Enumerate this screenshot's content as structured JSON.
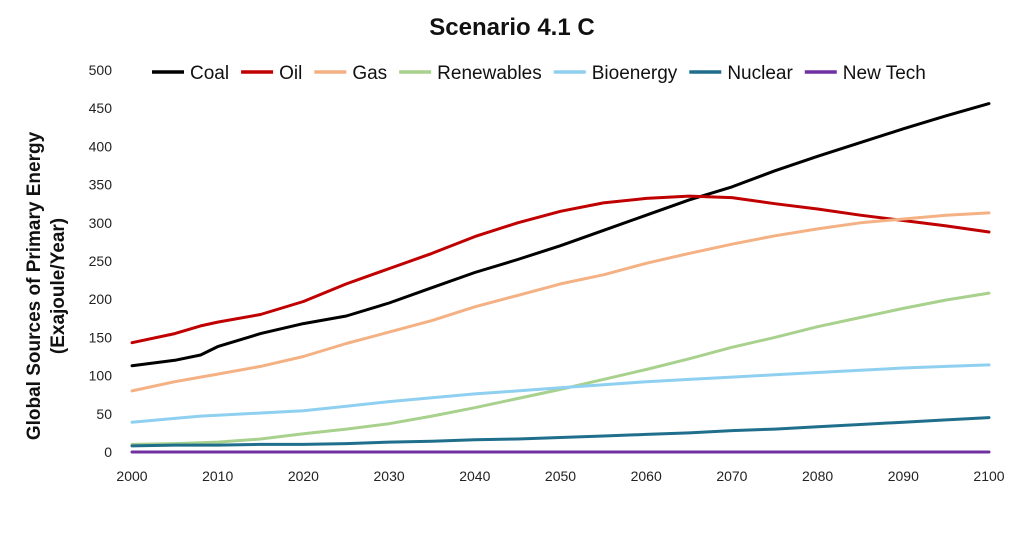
{
  "chart_data": {
    "type": "line",
    "title": "Scenario 4.1 C",
    "ylabel": "Global Sources of Primary Energy\n(Exajoule/Year)",
    "xlabel": "",
    "xlim": [
      2000,
      2100
    ],
    "ylim": [
      0,
      500
    ],
    "xticks": [
      2000,
      2010,
      2020,
      2030,
      2040,
      2050,
      2060,
      2070,
      2080,
      2090,
      2100
    ],
    "yticks": [
      0,
      50,
      100,
      150,
      200,
      250,
      300,
      350,
      400,
      450,
      500
    ],
    "grid": false,
    "legend_position": "top",
    "x": [
      2000,
      2005,
      2008,
      2010,
      2015,
      2020,
      2025,
      2030,
      2035,
      2040,
      2045,
      2050,
      2055,
      2060,
      2065,
      2070,
      2075,
      2080,
      2085,
      2090,
      2095,
      2100
    ],
    "series": [
      {
        "name": "Coal",
        "color": "#000000",
        "values": [
          113,
          120,
          127,
          138,
          155,
          168,
          178,
          195,
          215,
          235,
          252,
          270,
          290,
          310,
          330,
          347,
          368,
          387,
          405,
          423,
          440,
          456
        ]
      },
      {
        "name": "Oil",
        "color": "#c00000",
        "values": [
          143,
          155,
          165,
          170,
          180,
          197,
          220,
          240,
          260,
          282,
          300,
          315,
          326,
          332,
          335,
          333,
          325,
          318,
          310,
          303,
          296,
          288
        ]
      },
      {
        "name": "Gas",
        "color": "#f4b183",
        "values": [
          80,
          92,
          98,
          102,
          112,
          125,
          142,
          157,
          172,
          190,
          205,
          220,
          232,
          247,
          260,
          272,
          283,
          292,
          300,
          305,
          310,
          313
        ]
      },
      {
        "name": "Renewables",
        "color": "#a9d18e",
        "values": [
          10,
          11,
          12,
          13,
          17,
          24,
          30,
          37,
          47,
          58,
          70,
          82,
          95,
          108,
          122,
          137,
          150,
          164,
          176,
          188,
          199,
          208
        ]
      },
      {
        "name": "Bioenergy",
        "color": "#8fd0f0",
        "values": [
          39,
          44,
          47,
          48,
          51,
          54,
          60,
          66,
          71,
          76,
          80,
          84,
          88,
          92,
          95,
          98,
          101,
          104,
          107,
          110,
          112,
          114
        ]
      },
      {
        "name": "Nuclear",
        "color": "#1f6e8c",
        "values": [
          8,
          9,
          9,
          9,
          10,
          10,
          11,
          13,
          14,
          16,
          17,
          19,
          21,
          23,
          25,
          28,
          30,
          33,
          36,
          39,
          42,
          45
        ]
      },
      {
        "name": "New Tech",
        "color": "#7030a0",
        "values": [
          0,
          0,
          0,
          0,
          0,
          0,
          0,
          0,
          0,
          0,
          0,
          0,
          0,
          0,
          0,
          0,
          0,
          0,
          0,
          0,
          0,
          0
        ]
      }
    ]
  }
}
